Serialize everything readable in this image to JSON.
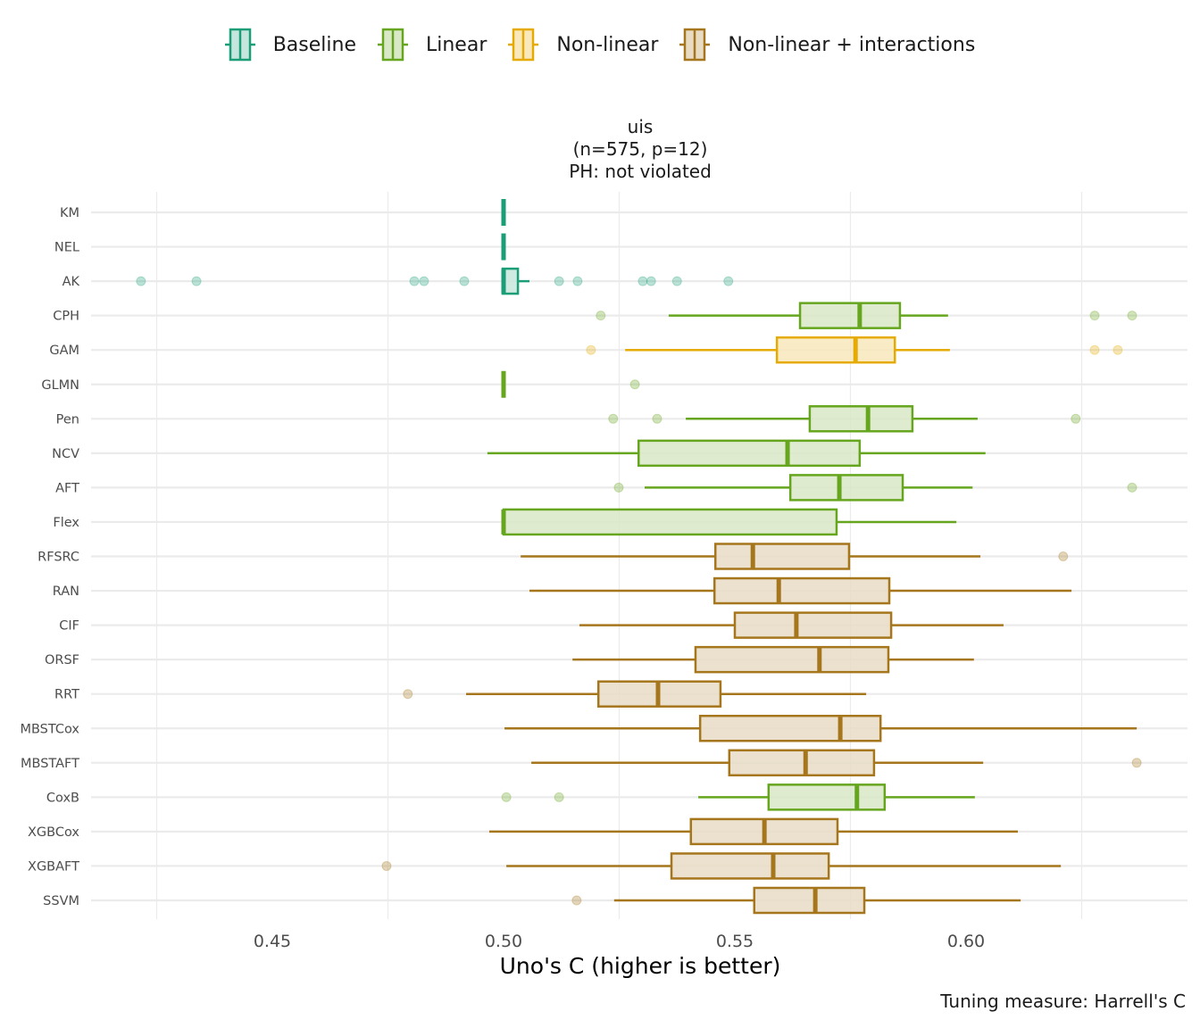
{
  "chart_data": {
    "type": "boxplot",
    "title": [
      "uis",
      "(n=575, p=12)",
      "PH: not violated"
    ],
    "xlabel": "Uno's C (higher is better)",
    "ylabel": "",
    "caption": "Tuning measure: Harrell's C",
    "xlim": [
      0.411,
      0.648
    ],
    "x_ticks": [
      0.45,
      0.5,
      0.55,
      0.6
    ],
    "x_tick_labels": [
      "0.45",
      "0.50",
      "0.55",
      "0.60"
    ],
    "x_gridlines": [
      0.425,
      0.475,
      0.525,
      0.575,
      0.625
    ],
    "grid": true,
    "legend_position": "top",
    "legend": [
      {
        "name": "Baseline",
        "color": "#1b9e77",
        "fill": "#c5e6dc"
      },
      {
        "name": "Linear",
        "color": "#66a61e",
        "fill": "#d9e8c7"
      },
      {
        "name": "Non-linear",
        "color": "#e6ab02",
        "fill": "#f8e8bb"
      },
      {
        "name": "Non-linear + interactions",
        "color": "#a6761d",
        "fill": "#e8dcc5"
      }
    ],
    "series": [
      {
        "name": "KM",
        "group": "Baseline",
        "whislo": 0.5,
        "q1": 0.5,
        "median": 0.5,
        "q3": 0.5,
        "whishi": 0.5,
        "outliers": []
      },
      {
        "name": "NEL",
        "group": "Baseline",
        "whislo": 0.5,
        "q1": 0.5,
        "median": 0.5,
        "q3": 0.5,
        "whishi": 0.5,
        "outliers": []
      },
      {
        "name": "AK",
        "group": "Baseline",
        "whislo": 0.5,
        "q1": 0.4998,
        "median": 0.5,
        "q3": 0.5031,
        "whishi": 0.5056,
        "outliers": [
          0.4216,
          0.4336,
          0.4807,
          0.4828,
          0.4915,
          0.512,
          0.516,
          0.5301,
          0.5319,
          0.5375,
          0.5486
        ]
      },
      {
        "name": "CPH",
        "group": "Linear",
        "whislo": 0.5357,
        "q1": 0.5641,
        "median": 0.577,
        "q3": 0.5857,
        "whishi": 0.5961,
        "outliers": [
          0.521,
          0.6278,
          0.6359
        ]
      },
      {
        "name": "GAM",
        "group": "Non-linear",
        "whislo": 0.5263,
        "q1": 0.5591,
        "median": 0.5761,
        "q3": 0.5846,
        "whishi": 0.5965,
        "outliers": [
          0.5189,
          0.6278,
          0.6328
        ]
      },
      {
        "name": "GLMN",
        "group": "Linear",
        "whislo": 0.5,
        "q1": 0.5,
        "median": 0.5,
        "q3": 0.5,
        "whishi": 0.5,
        "outliers": [
          0.5284
        ]
      },
      {
        "name": "Pen",
        "group": "Linear",
        "whislo": 0.5394,
        "q1": 0.5662,
        "median": 0.5788,
        "q3": 0.5884,
        "whishi": 0.6025,
        "outliers": [
          0.5237,
          0.5332,
          0.6237
        ]
      },
      {
        "name": "NCV",
        "group": "Linear",
        "whislo": 0.4965,
        "q1": 0.5292,
        "median": 0.5614,
        "q3": 0.577,
        "whishi": 0.6042,
        "outliers": []
      },
      {
        "name": "AFT",
        "group": "Linear",
        "whislo": 0.5305,
        "q1": 0.562,
        "median": 0.5726,
        "q3": 0.5863,
        "whishi": 0.6014,
        "outliers": [
          0.5249,
          0.6359
        ]
      },
      {
        "name": "Flex",
        "group": "Linear",
        "whislo": 0.5,
        "q1": 0.5,
        "median": 0.5,
        "q3": 0.572,
        "whishi": 0.5979,
        "outliers": []
      },
      {
        "name": "RFSRC",
        "group": "Non-linear + interactions",
        "whislo": 0.5037,
        "q1": 0.5458,
        "median": 0.5539,
        "q3": 0.5747,
        "whishi": 0.6031,
        "outliers": [
          0.621
        ]
      },
      {
        "name": "RAN",
        "group": "Non-linear + interactions",
        "whislo": 0.5056,
        "q1": 0.5456,
        "median": 0.5595,
        "q3": 0.5834,
        "whishi": 0.6228,
        "outliers": []
      },
      {
        "name": "CIF",
        "group": "Non-linear + interactions",
        "whislo": 0.5164,
        "q1": 0.55,
        "median": 0.5633,
        "q3": 0.5838,
        "whishi": 0.6081,
        "outliers": []
      },
      {
        "name": "ORSF",
        "group": "Non-linear + interactions",
        "whislo": 0.5149,
        "q1": 0.5415,
        "median": 0.5683,
        "q3": 0.5832,
        "whishi": 0.6017,
        "outliers": []
      },
      {
        "name": "RRT",
        "group": "Non-linear + interactions",
        "whislo": 0.4919,
        "q1": 0.5205,
        "median": 0.5334,
        "q3": 0.5469,
        "whishi": 0.5784,
        "outliers": [
          0.4793
        ]
      },
      {
        "name": "MBSTCox",
        "group": "Non-linear + interactions",
        "whislo": 0.5002,
        "q1": 0.5425,
        "median": 0.5728,
        "q3": 0.5815,
        "whishi": 0.6369,
        "outliers": []
      },
      {
        "name": "MBSTAFT",
        "group": "Non-linear + interactions",
        "whislo": 0.506,
        "q1": 0.5488,
        "median": 0.5653,
        "q3": 0.5801,
        "whishi": 0.6037,
        "outliers": [
          0.6369
        ]
      },
      {
        "name": "CoxB",
        "group": "Linear",
        "whislo": 0.5421,
        "q1": 0.5573,
        "median": 0.5764,
        "q3": 0.5824,
        "whishi": 0.6019,
        "outliers": [
          0.5006,
          0.512
        ]
      },
      {
        "name": "XGBCox",
        "group": "Non-linear + interactions",
        "whislo": 0.4969,
        "q1": 0.5405,
        "median": 0.5564,
        "q3": 0.5722,
        "whishi": 0.6112,
        "outliers": []
      },
      {
        "name": "XGBAFT",
        "group": "Non-linear + interactions",
        "whislo": 0.5006,
        "q1": 0.5363,
        "median": 0.5583,
        "q3": 0.5703,
        "whishi": 0.6205,
        "outliers": [
          0.4747
        ]
      },
      {
        "name": "SSVM",
        "group": "Non-linear + interactions",
        "whislo": 0.5239,
        "q1": 0.5542,
        "median": 0.5674,
        "q3": 0.578,
        "whishi": 0.6118,
        "outliers": [
          0.5158
        ]
      }
    ]
  }
}
